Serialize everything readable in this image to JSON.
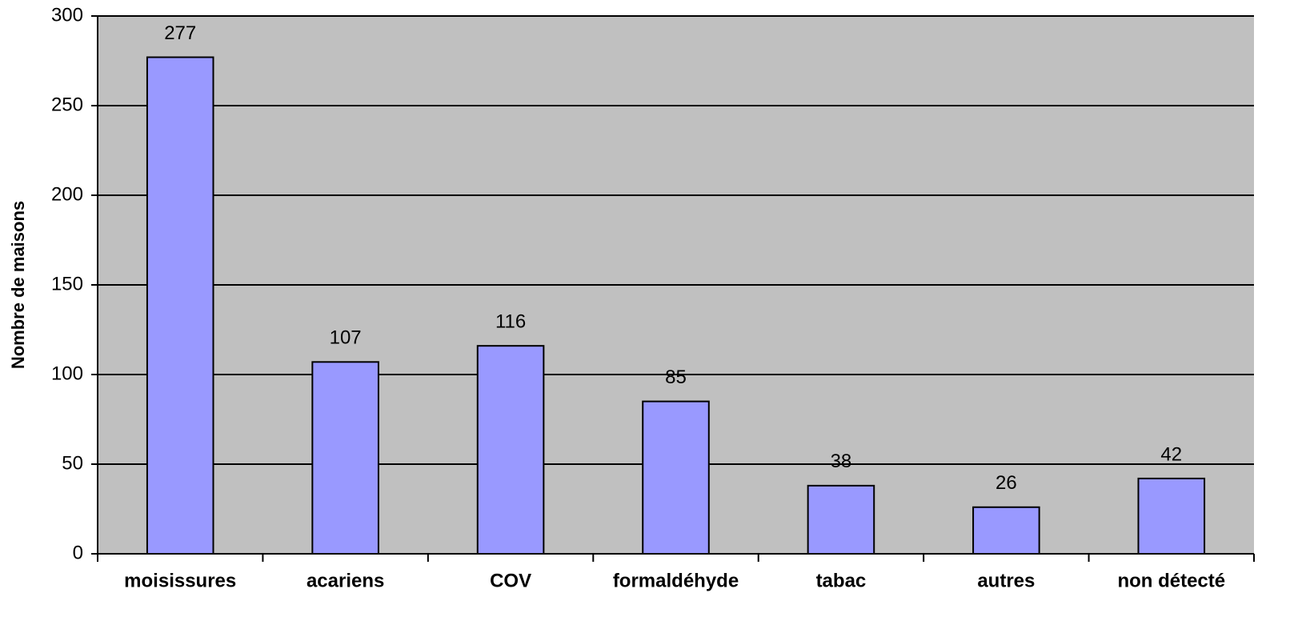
{
  "chart_data": {
    "type": "bar",
    "y_label": "Nombre de maisons",
    "categories": [
      "moisissures",
      "acariens",
      "COV",
      "formaldéhyde",
      "tabac",
      "autres",
      "non détecté"
    ],
    "values": [
      277,
      107,
      116,
      85,
      38,
      26,
      42
    ],
    "color": "#9999ff",
    "ylim": [
      0,
      300
    ],
    "yticks": [
      0,
      50,
      100,
      150,
      200,
      250,
      300
    ],
    "grid": true
  }
}
